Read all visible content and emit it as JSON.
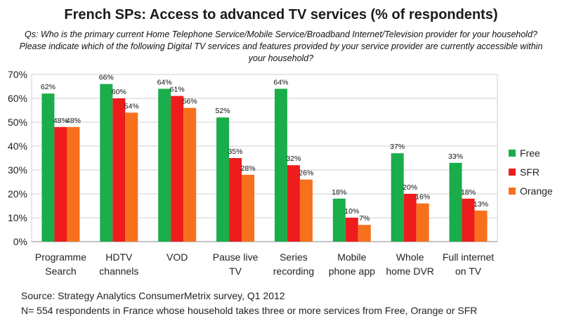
{
  "header": {
    "title": "French SPs: Access to advanced TV services (% of respondents)",
    "question_lines": [
      "Qs: Who is the primary current Home Telephone Service/Mobile Service/Broadband Internet/Television provider for your household?",
      "Please indicate which of the following Digital TV services and features provided by your service provider are currently accessible within",
      "your household?"
    ]
  },
  "footer": {
    "source": "Source: Strategy Analytics ConsumerMetrix survey, Q1 2012",
    "note": "N= 554 respondents in France whose household takes three or more services from Free, Orange or SFR"
  },
  "chart_data": {
    "type": "bar",
    "title": "French SPs: Access to advanced TV services (% of respondents)",
    "xlabel": "",
    "ylabel": "",
    "ylim": [
      0,
      70
    ],
    "yticks": [
      "0%",
      "10%",
      "20%",
      "30%",
      "40%",
      "50%",
      "60%",
      "70%"
    ],
    "grid": true,
    "legend_position": "right",
    "categories": [
      [
        "Programme",
        "Search"
      ],
      [
        "HDTV",
        "channels"
      ],
      [
        "VOD"
      ],
      [
        "Pause live",
        "TV"
      ],
      [
        "Series",
        "recording"
      ],
      [
        "Mobile",
        "phone app"
      ],
      [
        "Whole",
        "home DVR"
      ],
      [
        "Full internet",
        "on TV"
      ]
    ],
    "series": [
      {
        "name": "Free",
        "color": "#1aad4b",
        "values": [
          62,
          66,
          64,
          52,
          64,
          18,
          37,
          33
        ],
        "labels": [
          "62%",
          "66%",
          "64%",
          "52%",
          "64%",
          "18%",
          "37%",
          "33%"
        ]
      },
      {
        "name": "SFR",
        "color": "#ee1c1c",
        "values": [
          48,
          60,
          61,
          35,
          32,
          10,
          20,
          18
        ],
        "labels": [
          "48%",
          "60%",
          "61%",
          "35%",
          "32%",
          "10%",
          "20%",
          "18%"
        ]
      },
      {
        "name": "Orange",
        "color": "#f7711c",
        "values": [
          48,
          54,
          56,
          28,
          26,
          7,
          16,
          13
        ],
        "labels": [
          "48%",
          "54%",
          "56%",
          "28%",
          "26%",
          "7%",
          "16%",
          "13%"
        ]
      }
    ]
  }
}
